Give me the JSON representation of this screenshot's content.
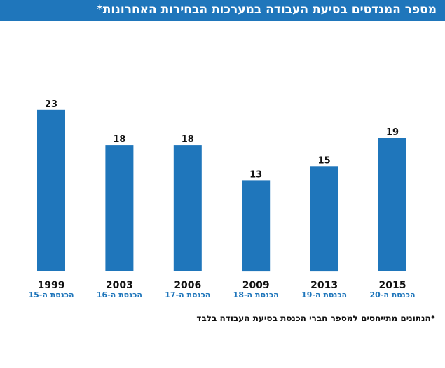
{
  "title": "מספר המנדטים בסיעת העבודה במערכות הבחירות האחרונות*",
  "footnote": "*הנתונים מתייחסים למספר חברי הכנסת בסיעת העבודה בלבד",
  "colors": {
    "bar": "#1f76bb",
    "title_bg": "#1f76bb",
    "title_text": "#ffffff",
    "year_text": "#111111",
    "knesset_text": "#1f76bb",
    "value_text": "#111111"
  },
  "chart_data": {
    "type": "bar",
    "categories": [
      "1999",
      "2003",
      "2006",
      "2009",
      "2013",
      "2015"
    ],
    "sublabels": [
      "הכנסת ה-15",
      "הכנסת ה-16",
      "הכנסת ה-17",
      "הכנסת ה-18",
      "הכנסת ה-19",
      "הכנסת ה-20"
    ],
    "values": [
      23,
      18,
      18,
      13,
      15,
      19
    ],
    "data_labels": [
      "23",
      "18",
      "18",
      "13",
      "15",
      "19"
    ],
    "ylim": [
      0,
      25
    ],
    "grid": false,
    "legend": "none"
  }
}
